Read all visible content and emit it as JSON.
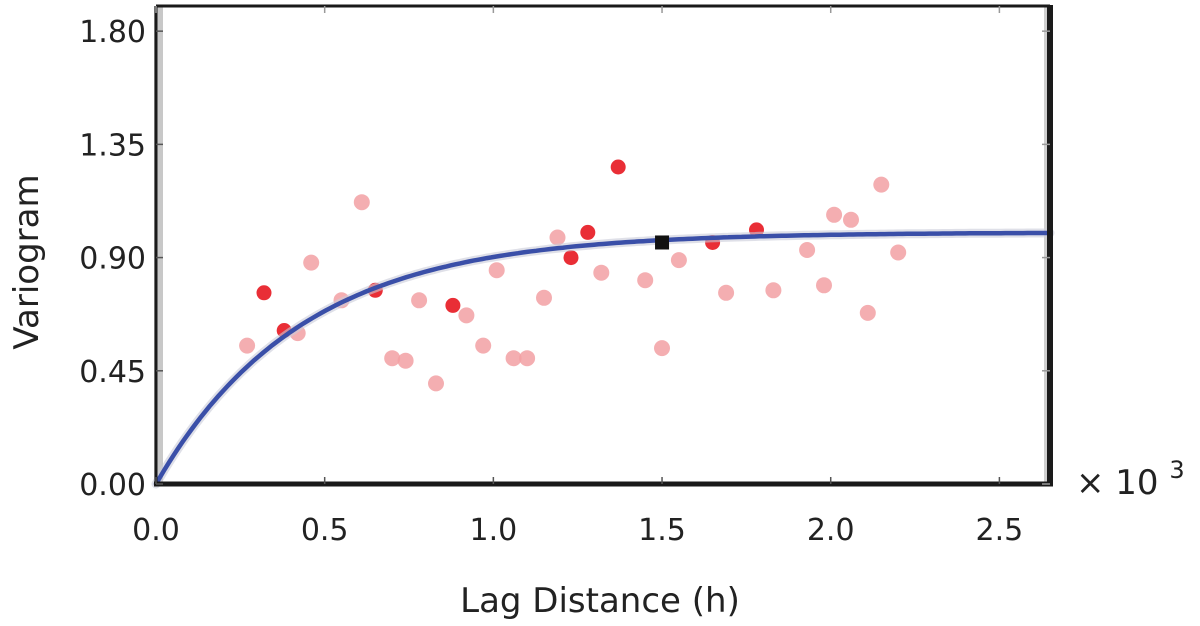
{
  "chart_data": {
    "type": "scatter",
    "xlabel": "Lag Distance (h)",
    "ylabel": "Variogram",
    "x_multiplier": "× 10",
    "x_multiplier_exp": "3",
    "xlim": [
      0,
      2.65
    ],
    "ylim": [
      0,
      1.9
    ],
    "x_ticks": [
      "0.0",
      "0.5",
      "1.0",
      "1.5",
      "2.0",
      "2.5"
    ],
    "y_ticks": [
      "0.00",
      "0.45",
      "0.90",
      "1.35",
      "1.80"
    ],
    "grid": false,
    "colors": {
      "point_strong": "#e8232b",
      "point_light": "#f2a0a3",
      "model_line": "#3a4fa8",
      "marker": "#111111",
      "frame": "#1a1a1a"
    },
    "series": [
      {
        "kind": "experimental_points",
        "points": [
          {
            "x": 0.27,
            "y": 0.55,
            "s": "light"
          },
          {
            "x": 0.32,
            "y": 0.76,
            "s": "strong"
          },
          {
            "x": 0.38,
            "y": 0.61,
            "s": "strong"
          },
          {
            "x": 0.42,
            "y": 0.6,
            "s": "light"
          },
          {
            "x": 0.46,
            "y": 0.88,
            "s": "light"
          },
          {
            "x": 0.55,
            "y": 0.73,
            "s": "light"
          },
          {
            "x": 0.61,
            "y": 1.12,
            "s": "light"
          },
          {
            "x": 0.65,
            "y": 0.77,
            "s": "strong"
          },
          {
            "x": 0.7,
            "y": 0.5,
            "s": "light"
          },
          {
            "x": 0.74,
            "y": 0.49,
            "s": "light"
          },
          {
            "x": 0.78,
            "y": 0.73,
            "s": "light"
          },
          {
            "x": 0.83,
            "y": 0.4,
            "s": "light"
          },
          {
            "x": 0.88,
            "y": 0.71,
            "s": "strong"
          },
          {
            "x": 0.92,
            "y": 0.67,
            "s": "light"
          },
          {
            "x": 0.97,
            "y": 0.55,
            "s": "light"
          },
          {
            "x": 1.01,
            "y": 0.85,
            "s": "light"
          },
          {
            "x": 1.06,
            "y": 0.5,
            "s": "light"
          },
          {
            "x": 1.1,
            "y": 0.5,
            "s": "light"
          },
          {
            "x": 1.15,
            "y": 0.74,
            "s": "light"
          },
          {
            "x": 1.19,
            "y": 0.98,
            "s": "light"
          },
          {
            "x": 1.23,
            "y": 0.9,
            "s": "strong"
          },
          {
            "x": 1.28,
            "y": 1.0,
            "s": "strong"
          },
          {
            "x": 1.32,
            "y": 0.84,
            "s": "light"
          },
          {
            "x": 1.37,
            "y": 1.26,
            "s": "strong"
          },
          {
            "x": 1.45,
            "y": 0.81,
            "s": "light"
          },
          {
            "x": 1.5,
            "y": 0.54,
            "s": "light"
          },
          {
            "x": 1.55,
            "y": 0.89,
            "s": "light"
          },
          {
            "x": 1.65,
            "y": 0.96,
            "s": "strong"
          },
          {
            "x": 1.69,
            "y": 0.76,
            "s": "light"
          },
          {
            "x": 1.78,
            "y": 1.01,
            "s": "strong"
          },
          {
            "x": 1.83,
            "y": 0.77,
            "s": "light"
          },
          {
            "x": 1.93,
            "y": 0.93,
            "s": "light"
          },
          {
            "x": 1.98,
            "y": 0.79,
            "s": "light"
          },
          {
            "x": 2.01,
            "y": 1.07,
            "s": "light"
          },
          {
            "x": 2.06,
            "y": 1.05,
            "s": "light"
          },
          {
            "x": 2.11,
            "y": 0.68,
            "s": "light"
          },
          {
            "x": 2.15,
            "y": 1.19,
            "s": "light"
          },
          {
            "x": 2.2,
            "y": 0.92,
            "s": "light"
          }
        ]
      },
      {
        "kind": "model_curve",
        "model": "exponential",
        "sill": 1.0,
        "range_param": 0.43,
        "x_range": [
          0,
          2.65
        ]
      },
      {
        "kind": "marker",
        "x": 1.5,
        "y": 0.96
      }
    ]
  }
}
